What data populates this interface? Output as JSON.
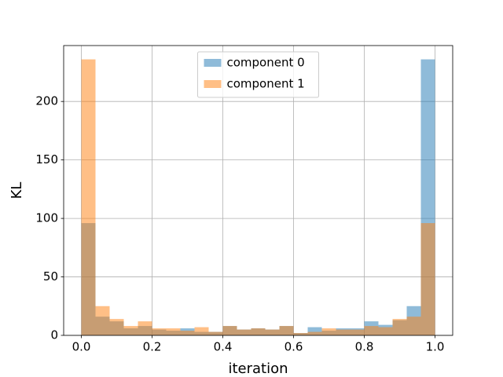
{
  "chart_data": {
    "type": "histogram",
    "xlabel": "iteration",
    "ylabel": "KL",
    "bins": [
      0,
      0.04,
      0.08,
      0.12,
      0.16,
      0.2,
      0.24,
      0.28,
      0.32,
      0.36,
      0.4,
      0.44,
      0.48,
      0.52,
      0.56,
      0.6,
      0.64,
      0.68,
      0.72,
      0.76,
      0.8,
      0.84,
      0.88,
      0.92,
      0.96,
      1.0
    ],
    "series": [
      {
        "name": "component 0",
        "color": "#1f77b4",
        "values": [
          96,
          16,
          12,
          6,
          8,
          5,
          4,
          6,
          3,
          3,
          8,
          5,
          6,
          5,
          8,
          2,
          7,
          4,
          6,
          6,
          12,
          9,
          13,
          25,
          236
        ]
      },
      {
        "name": "component 1",
        "color": "#ff7f0e",
        "values": [
          236,
          25,
          14,
          8,
          12,
          6,
          6,
          4,
          7,
          3,
          8,
          5,
          6,
          5,
          8,
          2,
          3,
          6,
          5,
          5,
          8,
          7,
          14,
          16,
          96
        ]
      }
    ],
    "opacity": 0.5,
    "xlim": [
      -0.05,
      1.05
    ],
    "ylim": [
      0,
      247.8
    ],
    "xticks": [
      {
        "value": 0,
        "label": "0.0"
      },
      {
        "value": 0.2,
        "label": "0.2"
      },
      {
        "value": 0.4,
        "label": "0.4"
      },
      {
        "value": 0.6,
        "label": "0.6"
      },
      {
        "value": 0.8,
        "label": "0.8"
      },
      {
        "value": 1.0,
        "label": "1.0"
      }
    ],
    "yticks": [
      0,
      50,
      100,
      150,
      200
    ],
    "grid": true,
    "legend": "upper center"
  }
}
